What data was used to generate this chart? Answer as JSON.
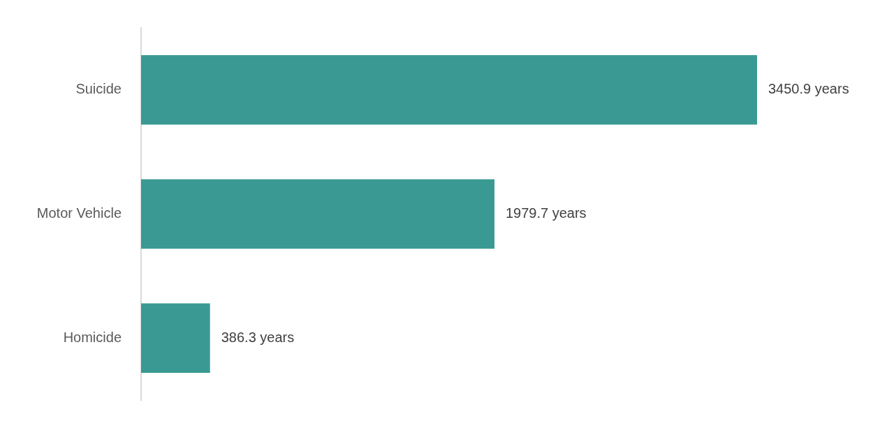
{
  "chart_data": {
    "type": "bar",
    "orientation": "horizontal",
    "categories": [
      "Suicide",
      "Motor Vehicle",
      "Homicide"
    ],
    "values": [
      3450.9,
      1979.7,
      386.3
    ],
    "value_labels": [
      "3450.9 years",
      "1979.7 years",
      "386.3 years"
    ],
    "color": "#3a9a93"
  }
}
